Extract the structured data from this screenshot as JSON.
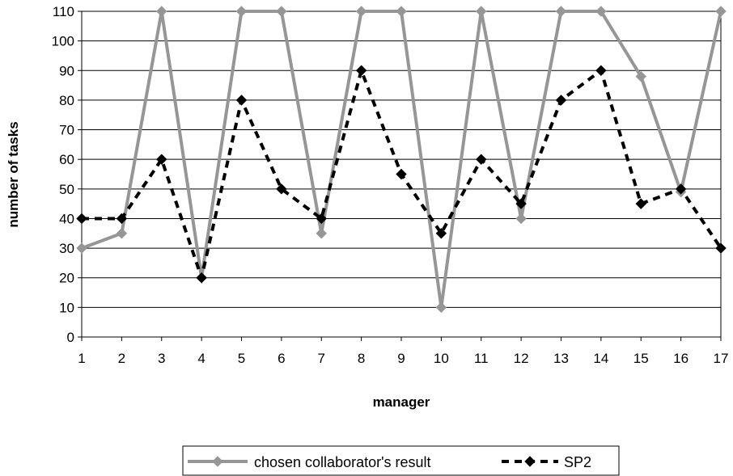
{
  "chart_data": {
    "type": "line",
    "title": "",
    "xlabel": "manager",
    "ylabel": "number of tasks",
    "x": [
      1,
      2,
      3,
      4,
      5,
      6,
      7,
      8,
      9,
      10,
      11,
      12,
      13,
      14,
      15,
      16,
      17
    ],
    "ylim": [
      0,
      110
    ],
    "yticks": [
      0,
      10,
      20,
      30,
      40,
      50,
      60,
      70,
      80,
      90,
      100,
      110
    ],
    "grid": "horizontal",
    "legend_position": "bottom",
    "series": [
      {
        "name": "chosen collaborator's result",
        "color": "#969696",
        "line_style": "solid",
        "marker": "diamond",
        "values": [
          30,
          35,
          110,
          20,
          110,
          110,
          35,
          110,
          110,
          10,
          110,
          40,
          110,
          110,
          88,
          49,
          110
        ]
      },
      {
        "name": "SP2",
        "color": "#000000",
        "line_style": "dashed",
        "marker": "diamond",
        "values": [
          40,
          40,
          60,
          20,
          80,
          50,
          40,
          90,
          55,
          35,
          60,
          45,
          80,
          90,
          45,
          50,
          30
        ]
      }
    ]
  }
}
